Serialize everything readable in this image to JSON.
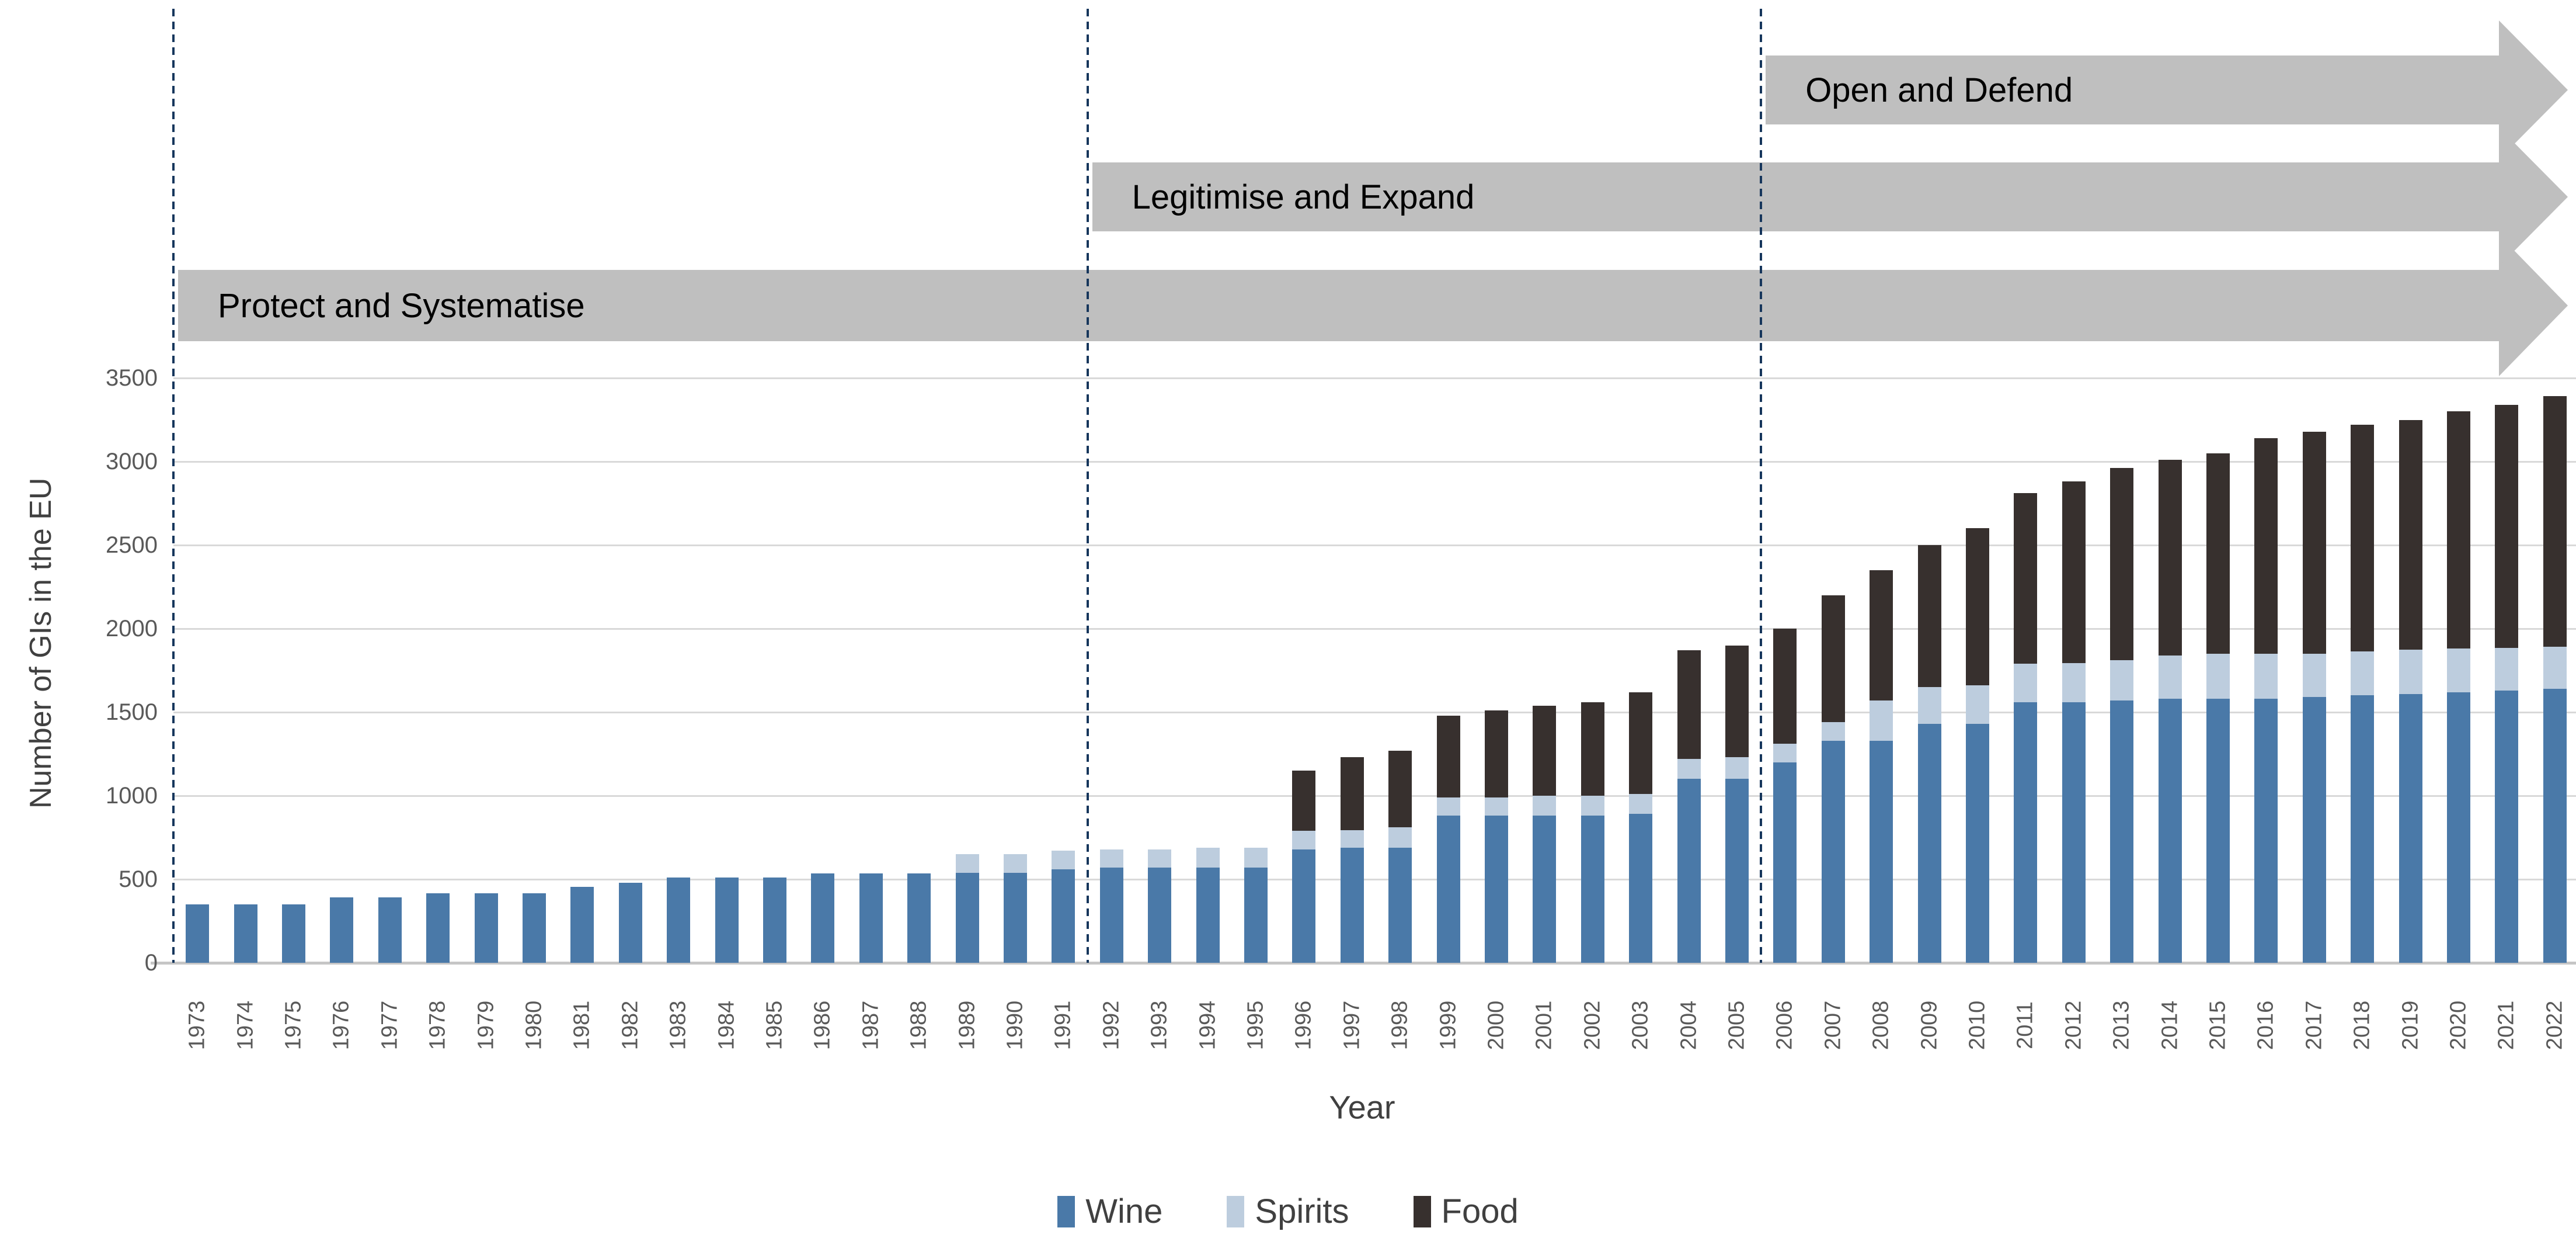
{
  "chart_data": {
    "type": "bar",
    "stacked": true,
    "title": "",
    "xlabel": "Year",
    "ylabel": "Number of GIs in the EU",
    "ylim": [
      0,
      3500
    ],
    "ytick_step": 500,
    "grid": true,
    "legend_position": "bottom",
    "categories": [
      1973,
      1974,
      1975,
      1976,
      1977,
      1978,
      1979,
      1980,
      1981,
      1982,
      1983,
      1984,
      1985,
      1986,
      1987,
      1988,
      1989,
      1990,
      1991,
      1992,
      1993,
      1994,
      1995,
      1996,
      1997,
      1998,
      1999,
      2000,
      2001,
      2002,
      2003,
      2004,
      2005,
      2006,
      2007,
      2008,
      2009,
      2010,
      2011,
      2012,
      2013,
      2014,
      2015,
      2016,
      2017,
      2018,
      2019,
      2020,
      2021,
      2022
    ],
    "series": [
      {
        "name": "Wine",
        "color": "#4A79A8",
        "values": [
          350,
          350,
          350,
          390,
          390,
          415,
          415,
          415,
          455,
          480,
          510,
          510,
          510,
          535,
          535,
          535,
          540,
          540,
          560,
          570,
          570,
          570,
          570,
          680,
          690,
          690,
          880,
          880,
          880,
          880,
          890,
          1100,
          1100,
          1200,
          1330,
          1330,
          1430,
          1430,
          1560,
          1560,
          1570,
          1580,
          1580,
          1580,
          1590,
          1600,
          1610,
          1620,
          1630,
          1640
        ]
      },
      {
        "name": "Spirits",
        "color": "#BDCDDE",
        "values": [
          0,
          0,
          0,
          0,
          0,
          0,
          0,
          0,
          0,
          0,
          0,
          0,
          0,
          0,
          0,
          0,
          110,
          110,
          110,
          110,
          110,
          120,
          120,
          110,
          105,
          120,
          110,
          110,
          120,
          120,
          120,
          120,
          130,
          110,
          110,
          240,
          220,
          230,
          230,
          235,
          240,
          260,
          270,
          270,
          260,
          265,
          265,
          260,
          255,
          250
        ]
      },
      {
        "name": "Food",
        "color": "#37302E",
        "values": [
          0,
          0,
          0,
          0,
          0,
          0,
          0,
          0,
          0,
          0,
          0,
          0,
          0,
          0,
          0,
          0,
          0,
          0,
          0,
          0,
          0,
          0,
          0,
          360,
          435,
          460,
          490,
          520,
          540,
          560,
          610,
          650,
          670,
          690,
          760,
          780,
          850,
          940,
          1020,
          1085,
          1150,
          1170,
          1200,
          1290,
          1330,
          1355,
          1375,
          1420,
          1455,
          1500
        ]
      }
    ],
    "phase_lines": {
      "color": "#16365C",
      "years": [
        1973,
        1992,
        2006
      ]
    },
    "phases": [
      {
        "label": "Protect and Systematise",
        "start_year": 1973
      },
      {
        "label": "Legitimise and Expand",
        "start_year": 1992
      },
      {
        "label": "Open and Defend",
        "start_year": 2006
      }
    ],
    "phase_banner_color": "#BFBFBF"
  },
  "style_colors": {
    "gridline": "#D9D9D9",
    "axis_line": "#C6C6C6",
    "tick_text": "#595959",
    "axis_title_text": "#404040",
    "banner_text": "#000000"
  }
}
